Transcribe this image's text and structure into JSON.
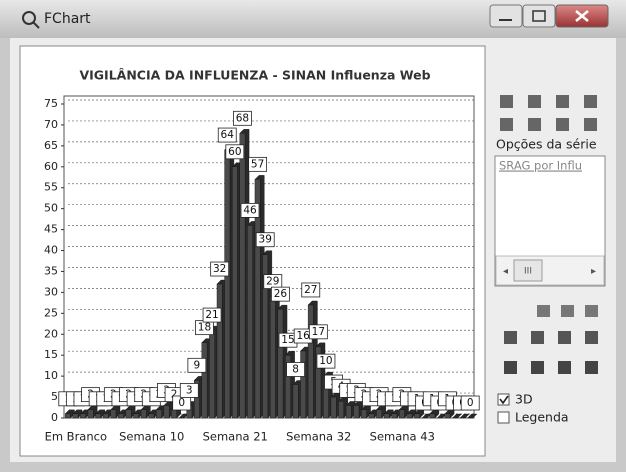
{
  "window": {
    "title": "FChart",
    "series_options_label": "Opções da série",
    "series_list": [
      "SRAG por Influ"
    ],
    "scrollbar_thumb": "III",
    "checkboxes": [
      {
        "label": "3D",
        "checked": true
      },
      {
        "label": "Legenda",
        "checked": false
      }
    ]
  },
  "chart_data": {
    "type": "bar",
    "title": "VIGILÂNCIA DA INFLUENZA - SINAN Influenza Web",
    "categories": [
      "Em Branco",
      null,
      null,
      null,
      null,
      null,
      null,
      null,
      null,
      null,
      "Semana 10",
      null,
      null,
      null,
      null,
      null,
      null,
      null,
      null,
      null,
      null,
      "Semana 21",
      null,
      null,
      null,
      null,
      null,
      null,
      null,
      null,
      null,
      null,
      "Semana 32",
      null,
      null,
      null,
      null,
      null,
      null,
      null,
      null,
      null,
      null,
      "Semana 43",
      null,
      null,
      null,
      null,
      null,
      null,
      null,
      null,
      null,
      null
    ],
    "values": [
      1,
      1,
      1,
      2,
      1,
      1,
      2,
      1,
      2,
      1,
      2,
      1,
      2,
      3,
      2,
      0,
      3,
      9,
      18,
      21,
      32,
      64,
      60,
      68,
      46,
      57,
      39,
      29,
      26,
      15,
      8,
      16,
      27,
      17,
      10,
      5,
      4,
      3,
      3,
      2,
      1,
      2,
      1,
      1,
      2,
      1,
      1,
      0,
      1,
      0,
      1,
      0,
      0,
      0
    ],
    "color": "#4a4a4a",
    "ylim": [
      0,
      75
    ],
    "yticks": [
      0,
      5,
      10,
      15,
      20,
      25,
      30,
      35,
      40,
      45,
      50,
      55,
      60,
      65,
      70,
      75
    ],
    "grid": true,
    "three_d": true
  }
}
